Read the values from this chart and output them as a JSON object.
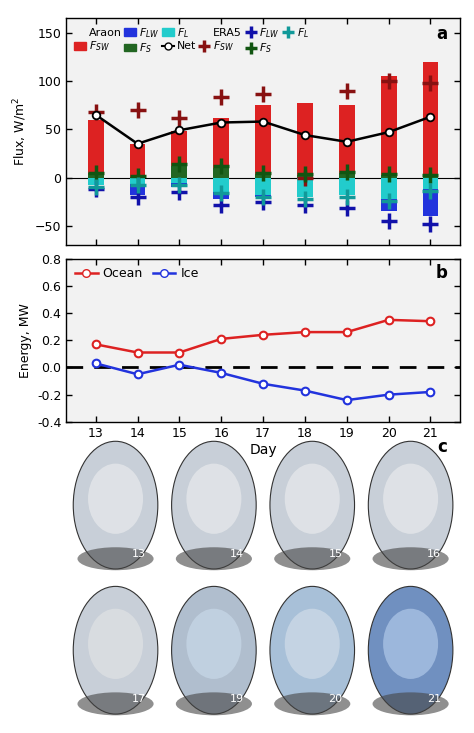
{
  "days": [
    13,
    14,
    15,
    16,
    17,
    18,
    19,
    20,
    21
  ],
  "fsw_araon": [
    60,
    35,
    48,
    62,
    75,
    77,
    75,
    105,
    120
  ],
  "fsw_era5": [
    68,
    70,
    62,
    83,
    87,
    0,
    90,
    100,
    98
  ],
  "flw_araon": [
    -3,
    -18,
    -10,
    -22,
    -20,
    -15,
    -12,
    -35,
    -40
  ],
  "flw_era5": [
    -12,
    -20,
    -15,
    -28,
    -25,
    -28,
    -32,
    -45,
    -48
  ],
  "fs_araon": [
    5,
    1,
    12,
    10,
    4,
    3,
    5,
    3,
    2
  ],
  "fs_era5": [
    5,
    2,
    14,
    12,
    5,
    4,
    6,
    4,
    3
  ],
  "fl_araon": [
    -8,
    -7,
    -6,
    -15,
    -18,
    -20,
    -18,
    -22,
    -12
  ],
  "fl_era5": [
    -10,
    -8,
    -8,
    -16,
    -20,
    -22,
    -20,
    -24,
    -14
  ],
  "net_vals": [
    65,
    35,
    49,
    57,
    58,
    44,
    37,
    47,
    63
  ],
  "ocean_energy": [
    0.17,
    0.11,
    0.11,
    0.21,
    0.24,
    0.26,
    0.26,
    0.35,
    0.34
  ],
  "ice_energy": [
    0.03,
    -0.05,
    0.02,
    -0.04,
    -0.12,
    -0.17,
    -0.24,
    -0.2,
    -0.18
  ],
  "bar_color_sw": "#DD2222",
  "bar_color_lw": "#2233DD",
  "bar_color_s": "#226622",
  "bar_color_l": "#22CCCC",
  "era5_color_sw": "#881111",
  "era5_color_lw": "#1111AA",
  "era5_color_s": "#115511",
  "era5_color_l": "#119999",
  "net_color": "#000000",
  "ocean_color": "#DD2222",
  "ice_color": "#2233DD",
  "ylim_a": [
    -70,
    165
  ],
  "ylim_b": [
    -0.4,
    0.8
  ],
  "yticks_a": [
    -50,
    0,
    50,
    100,
    150
  ],
  "yticks_b": [
    -0.4,
    -0.2,
    0.0,
    0.2,
    0.4,
    0.6,
    0.8
  ]
}
